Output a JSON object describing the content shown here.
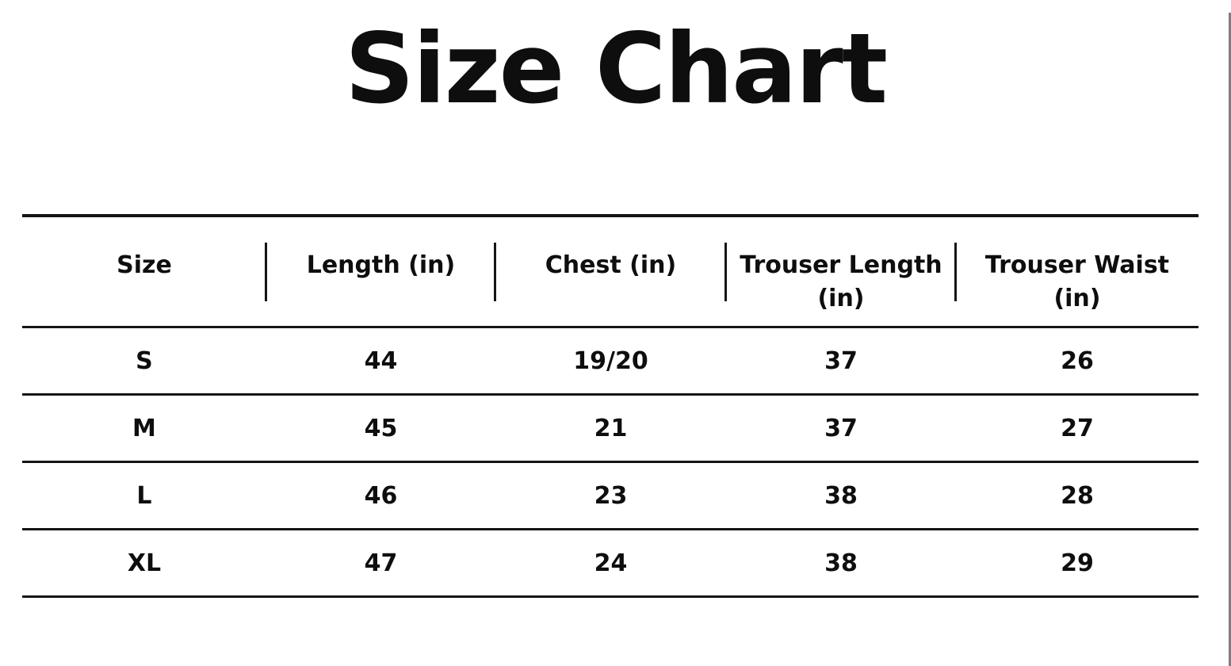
{
  "title": "Size Chart",
  "colors": {
    "text": "#0e0e0e",
    "line": "#151515",
    "edge": "#7e7e7e",
    "background": "#ffffff"
  },
  "chart_data": {
    "type": "table",
    "title": "Size Chart",
    "columns": [
      {
        "id": "size",
        "label": "Size",
        "lines": [
          "Size"
        ]
      },
      {
        "id": "length",
        "label": "Length (in)",
        "lines": [
          "Length (in)"
        ]
      },
      {
        "id": "chest",
        "label": "Chest (in)",
        "lines": [
          "Chest (in)"
        ]
      },
      {
        "id": "trouser-length",
        "label": "Trouser Length (in)",
        "lines": [
          "Trouser Length",
          "(in)"
        ]
      },
      {
        "id": "trouser-waist",
        "label": "Trouser Waist (in)",
        "lines": [
          "Trouser Waist",
          "(in)"
        ]
      }
    ],
    "rows": [
      [
        "S",
        "44",
        "19/20",
        "37",
        "26"
      ],
      [
        "M",
        "45",
        "21",
        "37",
        "27"
      ],
      [
        "L",
        "46",
        "23",
        "38",
        "28"
      ],
      [
        "XL",
        "47",
        "24",
        "38",
        "29"
      ]
    ]
  }
}
